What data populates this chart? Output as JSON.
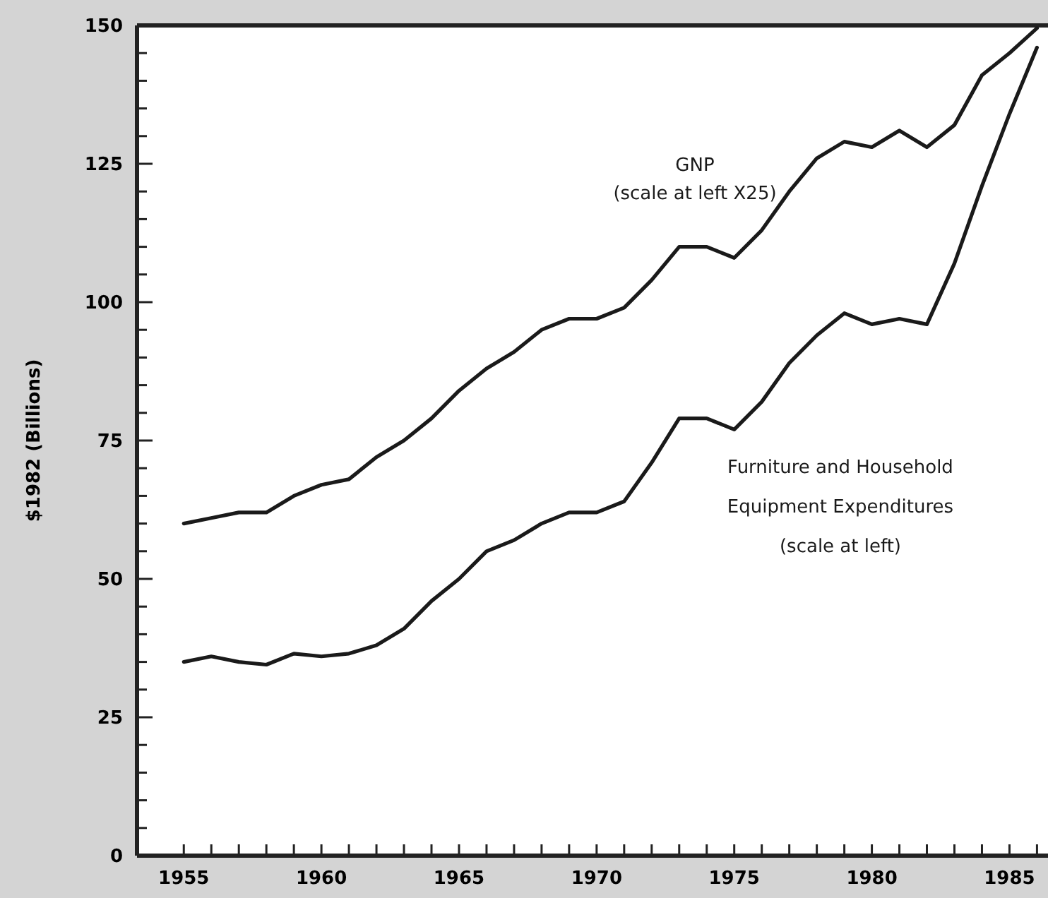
{
  "chart_data": {
    "type": "line",
    "ylabel": "$1982 (Billions)",
    "x": [
      1955,
      1956,
      1957,
      1958,
      1959,
      1960,
      1961,
      1962,
      1963,
      1964,
      1965,
      1966,
      1967,
      1968,
      1969,
      1970,
      1971,
      1972,
      1973,
      1974,
      1975,
      1976,
      1977,
      1978,
      1979,
      1980,
      1981,
      1982,
      1983,
      1984,
      1985,
      1986
    ],
    "series": [
      {
        "name": "GNP (scale at left X25)",
        "color": "#1a1a1a",
        "values": [
          60,
          61,
          62,
          62,
          65,
          67,
          68,
          72,
          75,
          79,
          84,
          88,
          91,
          95,
          97,
          97,
          99,
          104,
          110,
          110,
          108,
          113,
          120,
          126,
          129,
          128,
          131,
          128,
          132,
          141,
          145,
          149.5
        ]
      },
      {
        "name": "Furniture and Household Equipment Expenditures (scale at left)",
        "color": "#1a1a1a",
        "values": [
          35,
          36,
          35,
          34.5,
          36.5,
          36,
          36.5,
          38,
          41,
          46,
          50,
          55,
          57,
          60,
          62,
          62,
          64,
          71,
          79,
          79,
          77,
          82,
          89,
          94,
          98,
          96,
          97,
          96,
          107,
          121,
          134,
          146
        ]
      }
    ],
    "xlim": [
      1953.3,
      1986.4
    ],
    "ylim": [
      0,
      150
    ],
    "xticks": [
      {
        "value": 1955,
        "label": "1955"
      },
      {
        "value": 1956,
        "label": null
      },
      {
        "value": 1957,
        "label": null
      },
      {
        "value": 1958,
        "label": null
      },
      {
        "value": 1959,
        "label": null
      },
      {
        "value": 1960,
        "label": "1960"
      },
      {
        "value": 1961,
        "label": null
      },
      {
        "value": 1962,
        "label": null
      },
      {
        "value": 1963,
        "label": null
      },
      {
        "value": 1964,
        "label": null
      },
      {
        "value": 1965,
        "label": "1965"
      },
      {
        "value": 1966,
        "label": null
      },
      {
        "value": 1967,
        "label": null
      },
      {
        "value": 1968,
        "label": null
      },
      {
        "value": 1969,
        "label": null
      },
      {
        "value": 1970,
        "label": "1970"
      },
      {
        "value": 1971,
        "label": null
      },
      {
        "value": 1972,
        "label": null
      },
      {
        "value": 1973,
        "label": null
      },
      {
        "value": 1974,
        "label": null
      },
      {
        "value": 1975,
        "label": "1975"
      },
      {
        "value": 1976,
        "label": null
      },
      {
        "value": 1977,
        "label": null
      },
      {
        "value": 1978,
        "label": null
      },
      {
        "value": 1979,
        "label": null
      },
      {
        "value": 1980,
        "label": "1980"
      },
      {
        "value": 1981,
        "label": null
      },
      {
        "value": 1982,
        "label": null
      },
      {
        "value": 1983,
        "label": null
      },
      {
        "value": 1984,
        "label": null
      },
      {
        "value": 1985,
        "label": "1985"
      },
      {
        "value": 1986,
        "label": null
      }
    ],
    "yticks": [
      0,
      {
        "value": 5,
        "label": null
      },
      {
        "value": 10,
        "label": null
      },
      {
        "value": 15,
        "label": null
      },
      {
        "value": 20,
        "label": null
      },
      25,
      {
        "value": 30,
        "label": null
      },
      {
        "value": 35,
        "label": null
      },
      {
        "value": 40,
        "label": null
      },
      {
        "value": 45,
        "label": null
      },
      50,
      {
        "value": 55,
        "label": null
      },
      {
        "value": 60,
        "label": null
      },
      {
        "value": 65,
        "label": null
      },
      {
        "value": 70,
        "label": null
      },
      75,
      {
        "value": 80,
        "label": null
      },
      {
        "value": 85,
        "label": null
      },
      {
        "value": 90,
        "label": null
      },
      {
        "value": 95,
        "label": null
      },
      100,
      {
        "value": 105,
        "label": null
      },
      {
        "value": 110,
        "label": null
      },
      {
        "value": 115,
        "label": null
      },
      {
        "value": 120,
        "label": null
      },
      125,
      {
        "value": 130,
        "label": null
      },
      {
        "value": 135,
        "label": null
      },
      {
        "value": 140,
        "label": null
      },
      {
        "value": 145,
        "label": null
      },
      150
    ],
    "grid": false,
    "legend": false,
    "marker": "none",
    "line_style": "solid"
  }
}
